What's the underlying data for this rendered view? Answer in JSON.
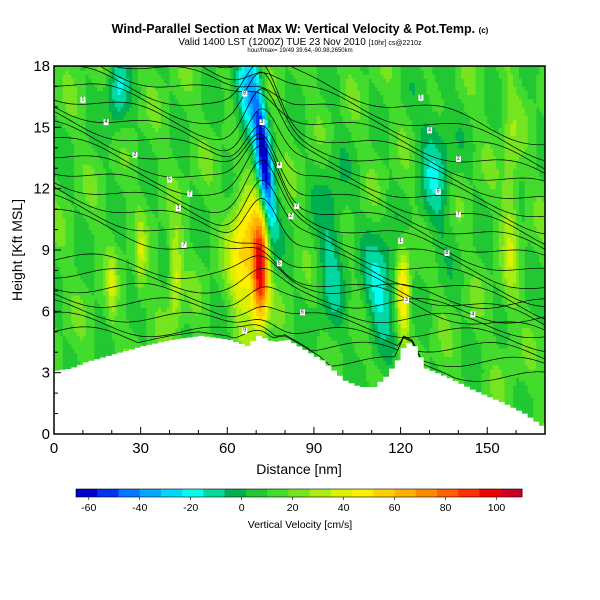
{
  "title": {
    "line1": "Wind-Parallel Section at Max W: Vertical Velocity & Pot.Temp.",
    "line1_mark": "(c)",
    "line2": "Valid 1400 LST (1200Z) TUE 23 Nov 2010",
    "line2_small": "[10hr] cs@2210z",
    "line3": "hour/fmax= 19/49 39.64,-90.98,2650km"
  },
  "chart_data": {
    "type": "heatmap",
    "xlabel": "Distance [nm]",
    "ylabel": "Height [Kft MSL]",
    "xlim": [
      0,
      170
    ],
    "ylim": [
      0,
      18
    ],
    "x_ticks": [
      0,
      30,
      60,
      90,
      120,
      150
    ],
    "y_ticks": [
      0,
      3,
      6,
      9,
      12,
      15,
      18
    ],
    "colorbar": {
      "label": "Vertical Velocity [cm/s]",
      "tick_labels": [
        "-60",
        "-40",
        "-20",
        "0",
        "20",
        "40",
        "60",
        "80",
        "100"
      ],
      "tick_values": [
        -60,
        -40,
        -20,
        0,
        20,
        40,
        60,
        80,
        100
      ],
      "range": [
        -65,
        110
      ],
      "colors": [
        "#0000cc",
        "#0033ee",
        "#0077ff",
        "#00a8ff",
        "#00d8ff",
        "#00ffee",
        "#00d8a0",
        "#00b050",
        "#22c832",
        "#44dc2c",
        "#77e420",
        "#aaee10",
        "#ddf000",
        "#ffee00",
        "#ffd000",
        "#ffb000",
        "#ff8c00",
        "#ff6000",
        "#ff3000",
        "#ee0000",
        "#cc0022"
      ]
    },
    "terrain_kft": [
      [
        0,
        3.1
      ],
      [
        5,
        3.2
      ],
      [
        10,
        3.5
      ],
      [
        20,
        3.9
      ],
      [
        30,
        4.3
      ],
      [
        40,
        4.6
      ],
      [
        50,
        4.8
      ],
      [
        60,
        4.6
      ],
      [
        66,
        4.3
      ],
      [
        70,
        4.8
      ],
      [
        75,
        4.5
      ],
      [
        80,
        4.6
      ],
      [
        85,
        4.2
      ],
      [
        92,
        3.6
      ],
      [
        100,
        2.6
      ],
      [
        105,
        2.3
      ],
      [
        110,
        2.3
      ],
      [
        114,
        2.8
      ],
      [
        118,
        3.6
      ],
      [
        121,
        4.5
      ],
      [
        124,
        4.3
      ],
      [
        128,
        3.2
      ],
      [
        135,
        2.8
      ],
      [
        145,
        2.1
      ],
      [
        155,
        1.5
      ],
      [
        162,
        1.0
      ],
      [
        168,
        0.4
      ],
      [
        170,
        0.4
      ]
    ],
    "theta_labels": [
      "1",
      "4",
      "2",
      "5",
      "7",
      "1",
      "8",
      "3",
      "4",
      "7",
      "2",
      "5",
      "6",
      "9"
    ],
    "features": [
      {
        "name": "downdraft core",
        "x": 73,
        "y_range": [
          10.5,
          17.5
        ],
        "w": -55
      },
      {
        "name": "updraft core",
        "x": 71,
        "y_range": [
          5,
          10.5
        ],
        "w": 100
      },
      {
        "name": "updraft west",
        "x": 42,
        "y_range": [
          6,
          9.5
        ],
        "w": 45
      },
      {
        "name": "updraft east",
        "x": 121,
        "y_range": [
          5,
          8.8
        ],
        "w": 50
      }
    ]
  }
}
